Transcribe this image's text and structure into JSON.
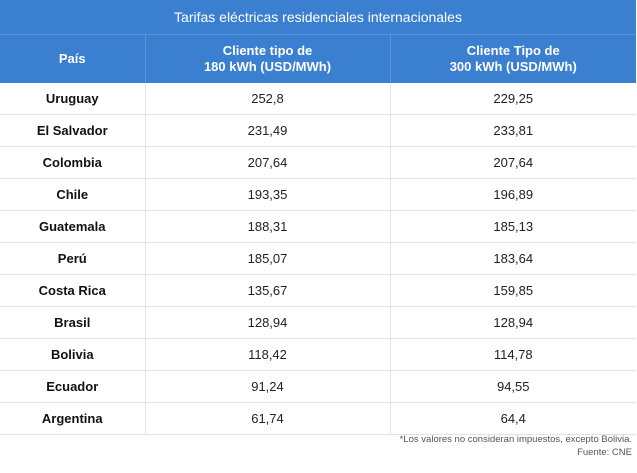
{
  "title": "Tarifas eléctricas residenciales internacionales",
  "headers": {
    "country": "País",
    "col180_line1": "Cliente tipo de",
    "col180_line2": "180 kWh (USD/MWh)",
    "col300_line1": "Cliente Tipo de",
    "col300_line2": "300 kWh (USD/MWh)"
  },
  "rows": [
    {
      "country": "Uruguay",
      "v180": "252,8",
      "v300": "229,25"
    },
    {
      "country": "El Salvador",
      "v180": "231,49",
      "v300": "233,81"
    },
    {
      "country": "Colombia",
      "v180": "207,64",
      "v300": "207,64"
    },
    {
      "country": "Chile",
      "v180": "193,35",
      "v300": "196,89"
    },
    {
      "country": "Guatemala",
      "v180": "188,31",
      "v300": "185,13"
    },
    {
      "country": "Perú",
      "v180": "185,07",
      "v300": "183,64"
    },
    {
      "country": "Costa Rica",
      "v180": "135,67",
      "v300": "159,85"
    },
    {
      "country": "Brasil",
      "v180": "128,94",
      "v300": "128,94"
    },
    {
      "country": "Bolivia",
      "v180": "118,42",
      "v300": "114,78"
    },
    {
      "country": "Ecuador",
      "v180": "91,24",
      "v300": "94,55"
    },
    {
      "country": "Argentina",
      "v180": "61,74",
      "v300": "64,4"
    }
  ],
  "footnote": "*Los valores no consideran impuestos, excepto Bolivia.",
  "source": "Fuente: CNE",
  "colors": {
    "header_bg": "#3a7fd0",
    "header_text": "#ffffff",
    "row_border": "#e3e3e3"
  }
}
